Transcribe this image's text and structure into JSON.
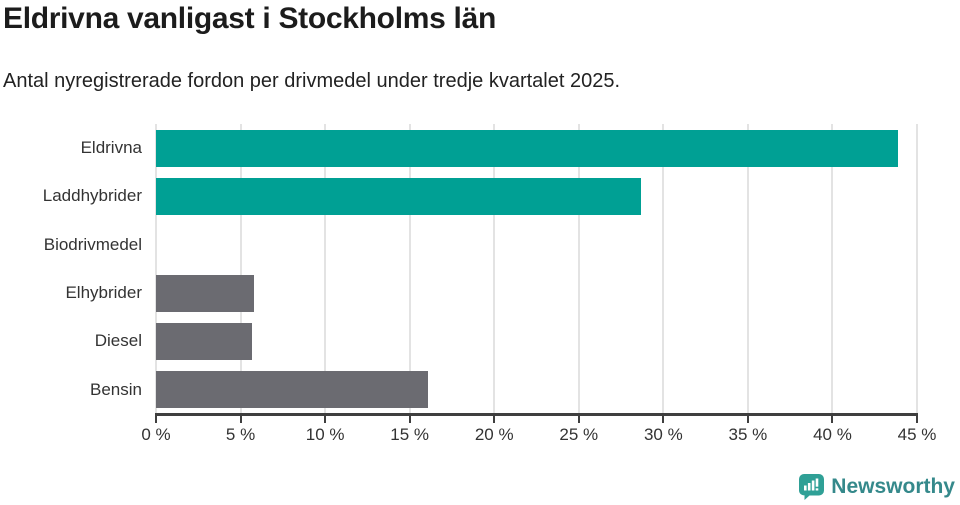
{
  "title": "Eldrivna vanligast i Stockholms län",
  "subtitle": "Antal nyregistrerade fordon per drivmedel under tredje kvartalet 2025.",
  "chart_data": {
    "type": "bar",
    "orientation": "horizontal",
    "title": "Eldrivna vanligast i Stockholms län",
    "subtitle": "Antal nyregistrerade fordon per drivmedel under tredje kvartalet 2025.",
    "categories": [
      "Eldrivna",
      "Laddhybrider",
      "Biodrivmedel",
      "Elhybrider",
      "Diesel",
      "Bensin"
    ],
    "values": [
      43.9,
      28.7,
      0,
      5.8,
      5.7,
      16.1
    ],
    "bar_colors": [
      "#00a094",
      "#00a094",
      "#6b6b71",
      "#6b6b71",
      "#6b6b71",
      "#6b6b71"
    ],
    "xlabel": "",
    "ylabel": "",
    "xlim": [
      0,
      45
    ],
    "x_tick_values": [
      0,
      5,
      10,
      15,
      20,
      25,
      30,
      35,
      40,
      45
    ],
    "x_tick_labels": [
      "0 %",
      "5 %",
      "10 %",
      "15 %",
      "20 %",
      "25 %",
      "30 %",
      "35 %",
      "40 %",
      "45 %"
    ],
    "grid": true,
    "legend": false
  },
  "colors": {
    "bar_teal": "#00a094",
    "bar_gray": "#6b6b71",
    "gridline": "#e3e3e3",
    "axis": "#3f3f3f",
    "label_text": "#333333",
    "brand_teal": "#2fa096",
    "brand_text": "#35898b"
  },
  "footer": {
    "brand": "Newsworthy"
  }
}
